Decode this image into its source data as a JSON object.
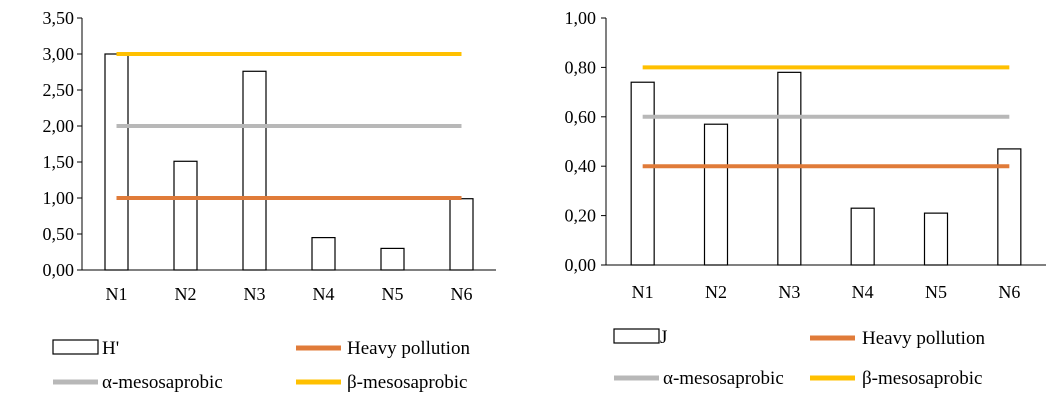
{
  "chart_data": [
    {
      "type": "bar",
      "categories": [
        "N1",
        "N2",
        "N3",
        "N4",
        "N5",
        "N6"
      ],
      "series": [
        {
          "name": "H'",
          "kind": "bar",
          "values": [
            3.0,
            1.51,
            2.76,
            0.45,
            0.3,
            0.99
          ],
          "color": "#ffffff"
        },
        {
          "name": "Heavy pollution",
          "kind": "line",
          "values": [
            1.0,
            1.0,
            1.0,
            1.0,
            1.0,
            1.0
          ],
          "color": "#E07B39"
        },
        {
          "name": "α-mesosaprobic",
          "kind": "line",
          "values": [
            2.0,
            2.0,
            2.0,
            2.0,
            2.0,
            2.0
          ],
          "color": "#B8B8B8"
        },
        {
          "name": "β-mesosaprobic",
          "kind": "line",
          "values": [
            3.0,
            3.0,
            3.0,
            3.0,
            3.0,
            3.0
          ],
          "color": "#FFC000"
        }
      ],
      "ylim": [
        0,
        3.5
      ],
      "yticks": [
        "0,00",
        "0,50",
        "1,00",
        "1,50",
        "2,00",
        "2,50",
        "3,00",
        "3,50"
      ],
      "title": "",
      "xlabel": "",
      "ylabel": "",
      "grid": false,
      "legend": "bottom"
    },
    {
      "type": "bar",
      "categories": [
        "N1",
        "N2",
        "N3",
        "N4",
        "N5",
        "N6"
      ],
      "series": [
        {
          "name": "J",
          "kind": "bar",
          "values": [
            0.74,
            0.57,
            0.78,
            0.23,
            0.21,
            0.47
          ],
          "color": "#ffffff"
        },
        {
          "name": "Heavy pollution",
          "kind": "line",
          "values": [
            0.4,
            0.4,
            0.4,
            0.4,
            0.4,
            0.4
          ],
          "color": "#E07B39"
        },
        {
          "name": "α-mesosaprobic",
          "kind": "line",
          "values": [
            0.6,
            0.6,
            0.6,
            0.6,
            0.6,
            0.6
          ],
          "color": "#B8B8B8"
        },
        {
          "name": "β-mesosaprobic",
          "kind": "line",
          "values": [
            0.8,
            0.8,
            0.8,
            0.8,
            0.8,
            0.8
          ],
          "color": "#FFC000"
        }
      ],
      "ylim": [
        0,
        1.0
      ],
      "yticks": [
        "0,00",
        "0,20",
        "0,40",
        "0,60",
        "0,80",
        "1,00"
      ],
      "title": "",
      "xlabel": "",
      "ylabel": "",
      "grid": false,
      "legend": "bottom"
    }
  ]
}
